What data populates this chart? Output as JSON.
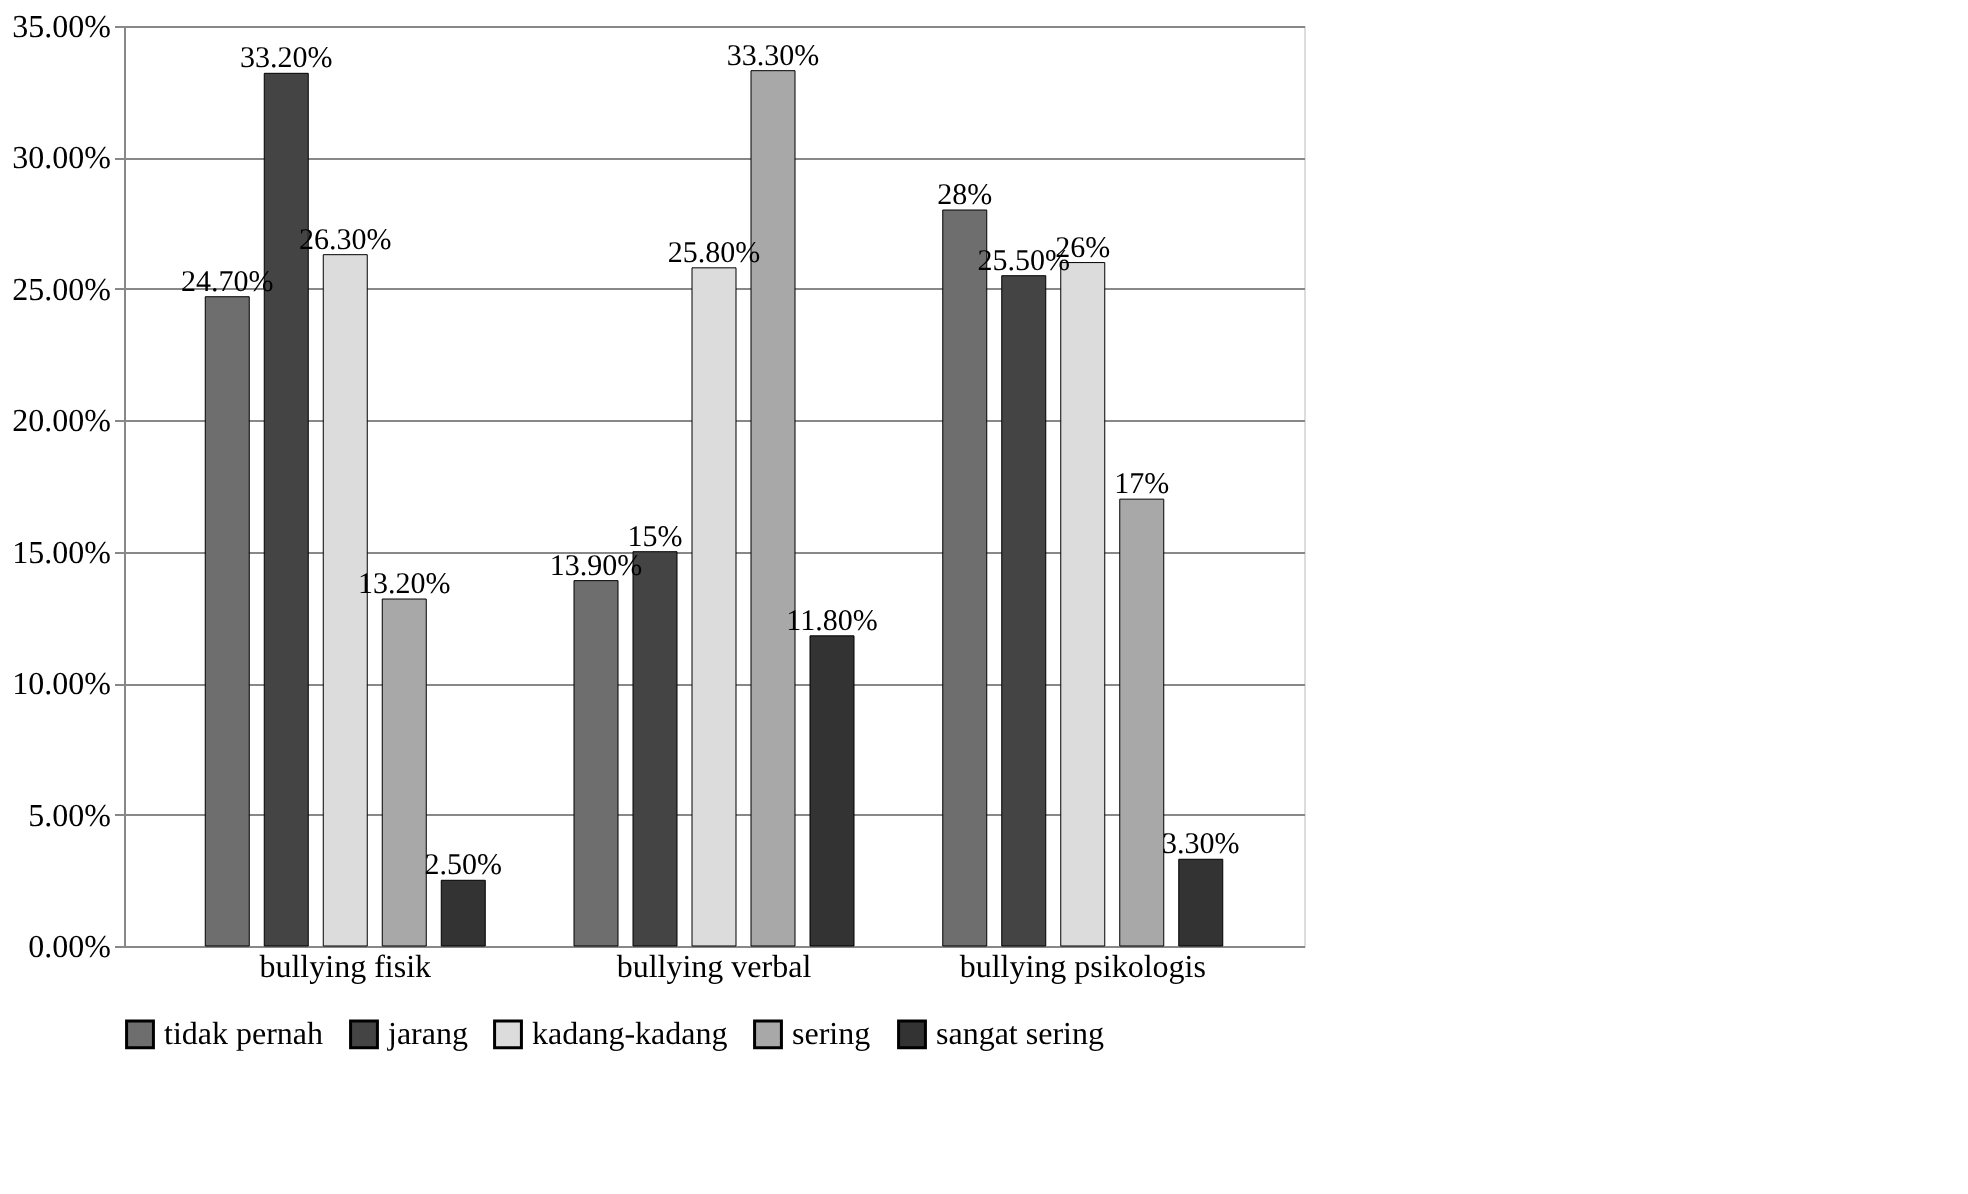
{
  "chart_data": {
    "type": "bar",
    "categories": [
      "bullying fisik",
      "bullying verbal",
      "bullying psikologis"
    ],
    "series": [
      {
        "name": "tidak pernah",
        "color": "#6e6e6e",
        "values": [
          24.7,
          13.9,
          28
        ],
        "value_labels": [
          "24.70%",
          "13.90%",
          "28%"
        ]
      },
      {
        "name": "jarang",
        "color": "#444444",
        "values": [
          33.2,
          15,
          25.5
        ],
        "value_labels": [
          "33.20%",
          "15%",
          "25.50%"
        ]
      },
      {
        "name": "kadang-kadang",
        "color": "#dcdcdc",
        "values": [
          26.3,
          25.8,
          26
        ],
        "value_labels": [
          "26.30%",
          "25.80%",
          "26%"
        ]
      },
      {
        "name": "sering",
        "color": "#a8a8a8",
        "values": [
          13.2,
          33.3,
          17
        ],
        "value_labels": [
          "13.20%",
          "33.30%",
          "17%"
        ]
      },
      {
        "name": "sangat sering",
        "color": "#333333",
        "values": [
          2.5,
          11.8,
          3.3
        ],
        "value_labels": [
          "2.50%",
          "11.80%",
          "3.30%"
        ]
      }
    ],
    "ylim": [
      0,
      35
    ],
    "yticks": [
      {
        "value": 0,
        "label": "0.00%"
      },
      {
        "value": 5,
        "label": "5.00%"
      },
      {
        "value": 10,
        "label": "10.00%"
      },
      {
        "value": 15,
        "label": "15.00%"
      },
      {
        "value": 20,
        "label": "20.00%"
      },
      {
        "value": 25,
        "label": "25.00%"
      },
      {
        "value": 30,
        "label": "30.00%"
      },
      {
        "value": 35,
        "label": "35.00%"
      }
    ],
    "grid": "y",
    "legend": "bottom"
  }
}
